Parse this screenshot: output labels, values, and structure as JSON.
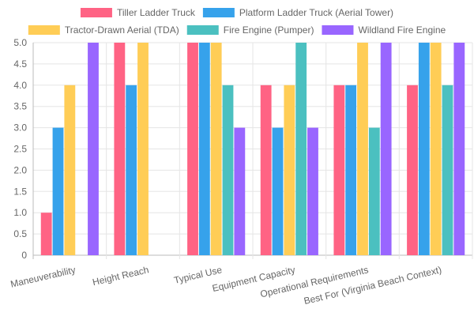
{
  "chart_data": {
    "type": "bar",
    "categories": [
      "Maneuverability",
      "Height Reach",
      "Typical Use",
      "Equipment Capacity",
      "Operational Requirements",
      "Best For (Virginia Beach Context)"
    ],
    "series": [
      {
        "name": "Tiller Ladder Truck",
        "color": "#FF6384",
        "values": [
          1,
          5,
          5,
          4,
          4,
          4
        ]
      },
      {
        "name": "Platform Ladder Truck (Aerial Tower)",
        "color": "#36A2EB",
        "values": [
          3,
          4,
          5,
          3,
          4,
          5
        ]
      },
      {
        "name": "Tractor-Drawn Aerial (TDA)",
        "color": "#FFCD56",
        "values": [
          4,
          5,
          5,
          4,
          5,
          5
        ]
      },
      {
        "name": "Fire Engine (Pumper)",
        "color": "#4BC0C0",
        "values": [
          0,
          0,
          4,
          5,
          3,
          4
        ]
      },
      {
        "name": "Wildland Fire Engine",
        "color": "#9966FF",
        "values": [
          5,
          0,
          3,
          3,
          5,
          5
        ]
      }
    ],
    "ylim": [
      0,
      5
    ],
    "yticks": [
      "0",
      "0.5",
      "1.0",
      "1.5",
      "2.0",
      "2.5",
      "3.0",
      "3.5",
      "4.0",
      "4.5",
      "5.0"
    ],
    "grid": true,
    "legend_position": "top"
  }
}
